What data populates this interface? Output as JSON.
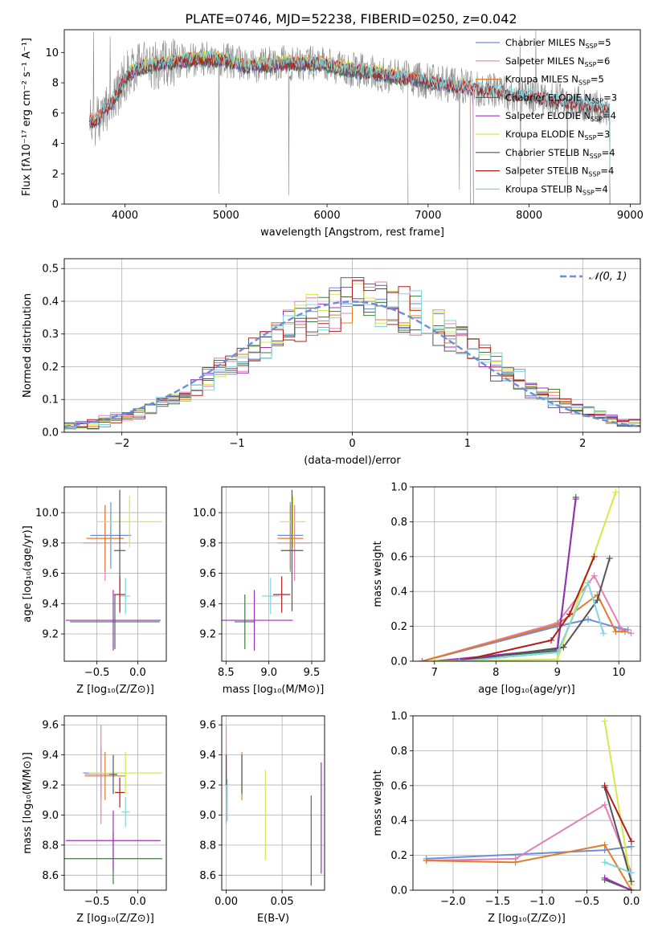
{
  "figure": {
    "title": "PLATE=0746, MJD=52238, FIBERID=0250, z=0.042"
  },
  "colors": {
    "Chabrier MILES": "#6a8fd8",
    "Salpeter MILES": "#e57fb8",
    "Kroupa MILES": "#e07b2a",
    "Chabrier ELODIE": "#3d7a3d",
    "Salpeter ELODIE": "#9b30b8",
    "Kroupa ELODIE": "#d4e84a",
    "Chabrier STELIB": "#555555",
    "Salpeter STELIB": "#b01e1e",
    "Kroupa STELIB": "#7fd6de",
    "data": "#888888",
    "normal": "#6a8fd8"
  },
  "chart_data": [
    {
      "type": "line",
      "id": "spectrum",
      "xlabel": "wavelength [Angstrom, rest frame]",
      "ylabel": "Flux [fλ10⁻¹⁷ erg cm⁻² s⁻¹ A⁻¹]",
      "xlim": [
        3400,
        9100
      ],
      "ylim": [
        0,
        11.5
      ],
      "xticks": [
        4000,
        5000,
        6000,
        7000,
        8000,
        9000
      ],
      "yticks": [
        0,
        2,
        4,
        6,
        8,
        10
      ],
      "legend_position": "top-right",
      "legend": [
        {
          "name": "Chabrier MILES",
          "label": "N",
          "sub": "SSP",
          "suffix": "=5"
        },
        {
          "name": "Salpeter MILES",
          "label": "N",
          "sub": "SSP",
          "suffix": "=6"
        },
        {
          "name": "Kroupa MILES",
          "label": "N",
          "sub": "SSP",
          "suffix": "=5"
        },
        {
          "name": "Chabrier ELODIE",
          "label": "N",
          "sub": "SSP",
          "suffix": "=3"
        },
        {
          "name": "Salpeter ELODIE",
          "label": "N",
          "sub": "SSP",
          "suffix": "=4"
        },
        {
          "name": "Kroupa ELODIE",
          "label": "N",
          "sub": "SSP",
          "suffix": "=3"
        },
        {
          "name": "Chabrier STELIB",
          "label": "N",
          "sub": "SSP",
          "suffix": "=4"
        },
        {
          "name": "Salpeter STELIB",
          "label": "N",
          "sub": "SSP",
          "suffix": "=4"
        },
        {
          "name": "Kroupa STELIB",
          "label": "N",
          "sub": "SSP",
          "suffix": "=4"
        }
      ],
      "continuum": {
        "x": [
          3650,
          3700,
          3800,
          3900,
          4000,
          4100,
          4200,
          4300,
          4400,
          4500,
          4600,
          4800,
          5000,
          5200,
          5400,
          5600,
          5800,
          6000,
          6200,
          6400,
          6600,
          6800,
          7000,
          7200,
          7400,
          7600,
          7800,
          8000,
          8200,
          8400,
          8600,
          8800
        ],
        "y": [
          5.6,
          5.4,
          6.2,
          7.0,
          8.3,
          8.9,
          9.1,
          9.2,
          9.3,
          9.4,
          9.5,
          9.6,
          9.5,
          9.1,
          9.2,
          9.3,
          9.3,
          9.2,
          8.9,
          8.7,
          8.5,
          8.3,
          8.1,
          7.9,
          7.7,
          7.5,
          7.3,
          7.1,
          6.9,
          6.7,
          6.5,
          6.3
        ]
      },
      "model_range": {
        "Chabrier MILES": [
          3650,
          7450
        ],
        "Salpeter MILES": [
          3650,
          7450
        ],
        "Kroupa MILES": [
          3650,
          7420
        ],
        "Chabrier ELODIE": [
          3900,
          6800
        ],
        "Salpeter ELODIE": [
          3900,
          6800
        ],
        "Kroupa ELODIE": [
          3900,
          6800
        ],
        "Chabrier STELIB": [
          3650,
          8800
        ],
        "Salpeter STELIB": [
          3650,
          8800
        ],
        "Kroupa STELIB": [
          3650,
          8800
        ]
      }
    },
    {
      "type": "step",
      "id": "residuals",
      "xlabel": "(data-model)/error",
      "ylabel": "Normed distribution",
      "xlim": [
        -2.5,
        2.5
      ],
      "ylim": [
        0,
        0.53
      ],
      "xticks": [
        -2,
        -1,
        0,
        1,
        2
      ],
      "yticks": [
        0.0,
        0.1,
        0.2,
        0.3,
        0.4,
        0.5
      ],
      "legend_position": "top-right",
      "reference_label": "𝒩(0, 1)",
      "bin_width": 0.1,
      "grid": true
    },
    {
      "type": "scatter",
      "id": "age_vs_Z",
      "xlabel": "Z [log₁₀(Z/Z⊙)]",
      "ylabel": "age  [log₁₀(age/yr)]",
      "xlim": [
        -0.9,
        0.35
      ],
      "ylim": [
        9.02,
        10.17
      ],
      "xticks": [
        -0.5,
        0.0
      ],
      "yticks": [
        9.2,
        9.4,
        9.6,
        9.8,
        10.0
      ],
      "points": [
        {
          "series": "Chabrier MILES",
          "x": -0.33,
          "xerr": 0.25,
          "y": 9.85,
          "yerr": 0.22
        },
        {
          "series": "Salpeter MILES",
          "x": -0.4,
          "xerr": 0.27,
          "y": 9.8,
          "yerr": 0.25
        },
        {
          "series": "Kroupa MILES",
          "x": -0.4,
          "xerr": 0.23,
          "y": 9.83,
          "yerr": 0.22
        },
        {
          "series": "Chabrier ELODIE",
          "x": -0.28,
          "xerr": 0.55,
          "y": 9.28,
          "yerr": 0.18
        },
        {
          "series": "Salpeter ELODIE",
          "x": -0.3,
          "xerr": 0.58,
          "y": 9.29,
          "yerr": 0.2
        },
        {
          "series": "Kroupa ELODIE",
          "x": -0.1,
          "xerr": 0.4,
          "y": 9.94,
          "yerr": 0.17
        },
        {
          "series": "Chabrier STELIB",
          "x": -0.22,
          "xerr": 0.07,
          "y": 9.75,
          "yerr": 0.4
        },
        {
          "series": "Salpeter STELIB",
          "x": -0.22,
          "xerr": 0.07,
          "y": 9.46,
          "yerr": 0.12
        },
        {
          "series": "Kroupa STELIB",
          "x": -0.15,
          "xerr": 0.06,
          "y": 9.45,
          "yerr": 0.12
        }
      ]
    },
    {
      "type": "scatter",
      "id": "age_vs_mass",
      "xlabel": "mass [log₁₀(M/M⊙)]",
      "ylabel": "",
      "xlim": [
        8.45,
        9.65
      ],
      "ylim": [
        9.02,
        10.17
      ],
      "xticks": [
        8.5,
        9.0,
        9.5
      ],
      "yticks": [
        9.2,
        9.4,
        9.6,
        9.8,
        10.0
      ],
      "points": [
        {
          "series": "Chabrier MILES",
          "x": 9.25,
          "xerr": 0.15,
          "y": 9.85,
          "yerr": 0.22
        },
        {
          "series": "Salpeter MILES",
          "x": 9.3,
          "xerr": 0.2,
          "y": 9.8,
          "yerr": 0.25
        },
        {
          "series": "Kroupa MILES",
          "x": 9.25,
          "xerr": 0.15,
          "y": 9.83,
          "yerr": 0.22
        },
        {
          "series": "Chabrier ELODIE",
          "x": 8.72,
          "xerr": 0.12,
          "y": 9.28,
          "yerr": 0.18
        },
        {
          "series": "Salpeter ELODIE",
          "x": 8.83,
          "xerr": 0.45,
          "y": 9.29,
          "yerr": 0.2
        },
        {
          "series": "Kroupa ELODIE",
          "x": 9.28,
          "xerr": 0.15,
          "y": 9.94,
          "yerr": 0.17
        },
        {
          "series": "Chabrier STELIB",
          "x": 9.27,
          "xerr": 0.13,
          "y": 9.75,
          "yerr": 0.4
        },
        {
          "series": "Salpeter STELIB",
          "x": 9.15,
          "xerr": 0.1,
          "y": 9.46,
          "yerr": 0.12
        },
        {
          "series": "Kroupa STELIB",
          "x": 9.02,
          "xerr": 0.1,
          "y": 9.45,
          "yerr": 0.12
        }
      ]
    },
    {
      "type": "line",
      "id": "weight_vs_age",
      "xlabel": "age  [log₁₀(age/yr)]",
      "ylabel": "mass weight",
      "xlim": [
        6.65,
        10.35
      ],
      "ylim": [
        0,
        1.0
      ],
      "xticks": [
        7,
        8,
        9,
        10
      ],
      "yticks": [
        0.0,
        0.2,
        0.4,
        0.6,
        0.8,
        1.0
      ],
      "series": [
        {
          "name": "Chabrier MILES",
          "x": [
            6.8,
            9.0,
            9.5,
            10.0,
            10.15
          ],
          "y": [
            0.0,
            0.2,
            0.24,
            0.19,
            0.18
          ]
        },
        {
          "name": "Salpeter MILES",
          "x": [
            6.8,
            9.0,
            9.6,
            10.05,
            10.2
          ],
          "y": [
            0.0,
            0.22,
            0.49,
            0.18,
            0.16
          ]
        },
        {
          "name": "Kroupa MILES",
          "x": [
            6.8,
            9.0,
            9.65,
            9.95,
            10.1
          ],
          "y": [
            0.0,
            0.21,
            0.38,
            0.17,
            0.17
          ]
        },
        {
          "name": "Chabrier ELODIE",
          "x": [
            7.0,
            9.0,
            9.3
          ],
          "y": [
            0.0,
            0.06,
            0.94
          ]
        },
        {
          "name": "Salpeter ELODIE",
          "x": [
            7.0,
            9.0,
            9.3
          ],
          "y": [
            0.0,
            0.07,
            0.93
          ]
        },
        {
          "name": "Kroupa ELODIE",
          "x": [
            7.0,
            9.0,
            9.95
          ],
          "y": [
            0.0,
            0.01,
            0.97
          ]
        },
        {
          "name": "Chabrier STELIB",
          "x": [
            7.4,
            9.1,
            9.65,
            9.85
          ],
          "y": [
            0.0,
            0.08,
            0.35,
            0.59
          ]
        },
        {
          "name": "Salpeter STELIB",
          "x": [
            7.4,
            8.9,
            9.2,
            9.6
          ],
          "y": [
            0.0,
            0.12,
            0.27,
            0.6
          ]
        },
        {
          "name": "Kroupa STELIB",
          "x": [
            7.4,
            9.0,
            9.5,
            9.75
          ],
          "y": [
            0.0,
            0.05,
            0.45,
            0.16
          ]
        }
      ]
    },
    {
      "type": "scatter",
      "id": "mass_vs_Z",
      "xlabel": "Z [log₁₀(Z/Z⊙)]",
      "ylabel": "mass [log₁₀(M/M⊙)]",
      "xlim": [
        -0.9,
        0.35
      ],
      "ylim": [
        8.5,
        9.66
      ],
      "xticks": [
        -0.5,
        0.0
      ],
      "yticks": [
        8.6,
        8.8,
        9.0,
        9.2,
        9.4,
        9.6
      ],
      "points": [
        {
          "series": "Chabrier MILES",
          "x": -0.45,
          "xerr": 0.22,
          "y": 9.28,
          "yerr": 0.17
        },
        {
          "series": "Salpeter MILES",
          "x": -0.45,
          "xerr": 0.2,
          "y": 9.27,
          "yerr": 0.33
        },
        {
          "series": "Kroupa MILES",
          "x": -0.4,
          "xerr": 0.25,
          "y": 9.26,
          "yerr": 0.16
        },
        {
          "series": "Chabrier ELODIE",
          "x": -0.3,
          "xerr": 0.6,
          "y": 8.71,
          "yerr": 0.17
        },
        {
          "series": "Salpeter ELODIE",
          "x": -0.3,
          "xerr": 0.58,
          "y": 8.83,
          "yerr": 0.2
        },
        {
          "series": "Kroupa ELODIE",
          "x": -0.15,
          "xerr": 0.45,
          "y": 9.28,
          "yerr": 0.14
        },
        {
          "series": "Chabrier STELIB",
          "x": -0.3,
          "xerr": 0.05,
          "y": 9.27,
          "yerr": 0.13
        },
        {
          "series": "Salpeter STELIB",
          "x": -0.22,
          "xerr": 0.06,
          "y": 9.15,
          "yerr": 0.1
        },
        {
          "series": "Kroupa STELIB",
          "x": -0.15,
          "xerr": 0.05,
          "y": 9.02,
          "yerr": 0.1
        }
      ]
    },
    {
      "type": "scatter",
      "id": "mass_vs_EBV",
      "xlabel": "E(B-V)",
      "ylabel": "",
      "xlim": [
        -0.004,
        0.088
      ],
      "ylim": [
        8.5,
        9.66
      ],
      "xticks": [
        0.0,
        0.05
      ],
      "yticks": [
        8.6,
        8.8,
        9.0,
        9.2,
        9.4,
        9.6
      ],
      "points": [
        {
          "series": "Chabrier MILES",
          "x": 0.0,
          "xerr": 0,
          "y": 9.28,
          "yerr": 0.17
        },
        {
          "series": "Salpeter MILES",
          "x": 0.0,
          "xerr": 0,
          "y": 9.27,
          "yerr": 0.33
        },
        {
          "series": "Kroupa MILES",
          "x": 0.014,
          "xerr": 0,
          "y": 9.26,
          "yerr": 0.16
        },
        {
          "series": "Chabrier ELODIE",
          "x": 0.076,
          "xerr": 0,
          "y": 8.83,
          "yerr": 0.3
        },
        {
          "series": "Salpeter ELODIE",
          "x": 0.085,
          "xerr": 0,
          "y": 8.98,
          "yerr": 0.37
        },
        {
          "series": "Kroupa ELODIE",
          "x": 0.035,
          "xerr": 0,
          "y": 9.0,
          "yerr": 0.3
        },
        {
          "series": "Chabrier STELIB",
          "x": 0.014,
          "xerr": 0,
          "y": 9.27,
          "yerr": 0.13
        },
        {
          "series": "Salpeter STELIB",
          "x": 0.0,
          "xerr": 0,
          "y": 9.3,
          "yerr": 0.1
        },
        {
          "series": "Kroupa STELIB",
          "x": 0.001,
          "xerr": 0,
          "y": 9.1,
          "yerr": 0.14
        }
      ]
    },
    {
      "type": "line",
      "id": "weight_vs_Z",
      "xlabel": "Z [log₁₀(Z/Z⊙)]",
      "ylabel": "mass weight",
      "xlim": [
        -2.45,
        0.1
      ],
      "ylim": [
        0,
        1.0
      ],
      "xticks": [
        -2.0,
        -1.5,
        -1.0,
        -0.5,
        0.0
      ],
      "yticks": [
        0.0,
        0.2,
        0.4,
        0.6,
        0.8,
        1.0
      ],
      "series": [
        {
          "name": "Chabrier MILES",
          "x": [
            -2.3,
            -0.3,
            0.0
          ],
          "y": [
            0.18,
            0.23,
            0.25
          ]
        },
        {
          "name": "Salpeter MILES",
          "x": [
            -2.3,
            -1.3,
            -0.3,
            0.0
          ],
          "y": [
            0.17,
            0.18,
            0.49,
            0.1
          ]
        },
        {
          "name": "Kroupa MILES",
          "x": [
            -2.3,
            -1.3,
            -0.3,
            0.0
          ],
          "y": [
            0.17,
            0.16,
            0.26,
            0.0
          ]
        },
        {
          "name": "Chabrier ELODIE",
          "x": [
            -0.3,
            0.0
          ],
          "y": [
            0.06,
            0.0
          ]
        },
        {
          "name": "Salpeter ELODIE",
          "x": [
            -0.3,
            0.0
          ],
          "y": [
            0.07,
            0.0
          ]
        },
        {
          "name": "Kroupa ELODIE",
          "x": [
            -0.3,
            0.0
          ],
          "y": [
            0.97,
            0.03
          ]
        },
        {
          "name": "Chabrier STELIB",
          "x": [
            -0.3,
            0.0
          ],
          "y": [
            0.59,
            0.05
          ]
        },
        {
          "name": "Salpeter STELIB",
          "x": [
            -0.3,
            0.0
          ],
          "y": [
            0.6,
            0.28
          ]
        },
        {
          "name": "Kroupa STELIB",
          "x": [
            -0.3,
            0.0
          ],
          "y": [
            0.16,
            0.1
          ]
        }
      ]
    }
  ]
}
